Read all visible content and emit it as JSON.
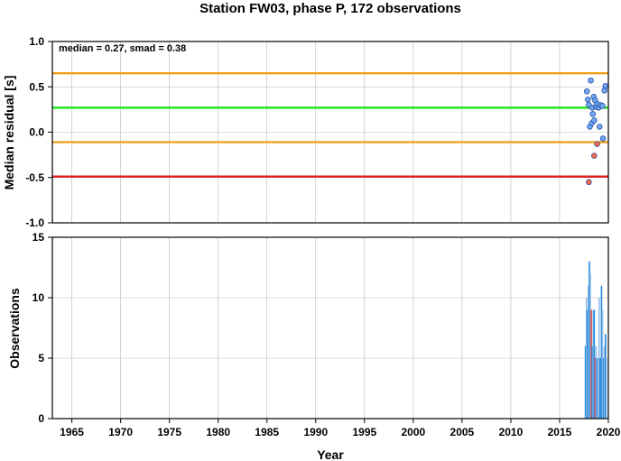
{
  "chart_data": [
    {
      "type": "scatter",
      "title": "Station FW03, phase P, 172 observations",
      "ylabel": "Median residual [s]",
      "annotation": "median = 0.27, smad = 0.38",
      "xlim": [
        1963,
        2020
      ],
      "ylim": [
        -1.0,
        1.0
      ],
      "yticks": [
        "-1.0",
        "-0.5",
        "0.0",
        "0.5",
        "1.0"
      ],
      "grid": true,
      "reference_lines": [
        {
          "value": 0.65,
          "color": "#f0a01c"
        },
        {
          "value": 0.27,
          "color": "#22e622"
        },
        {
          "value": -0.11,
          "color": "#f0a01c"
        },
        {
          "value": -0.49,
          "color": "#e02020"
        }
      ],
      "points": [
        {
          "x": 2017.8,
          "y": 0.45,
          "color": "#6fa8f5"
        },
        {
          "x": 2017.9,
          "y": 0.36,
          "color": "#6fa8f5"
        },
        {
          "x": 2018.0,
          "y": 0.3,
          "color": "#6fa8f5"
        },
        {
          "x": 2018.1,
          "y": 0.06,
          "color": "#6fa8f5"
        },
        {
          "x": 2018.2,
          "y": 0.57,
          "color": "#6fa8f5"
        },
        {
          "x": 2018.3,
          "y": 0.1,
          "color": "#6fa8f5"
        },
        {
          "x": 2018.35,
          "y": 0.27,
          "color": "#6fa8f5"
        },
        {
          "x": 2018.4,
          "y": 0.2,
          "color": "#6fa8f5"
        },
        {
          "x": 2018.5,
          "y": 0.39,
          "color": "#6fa8f5"
        },
        {
          "x": 2018.55,
          "y": 0.13,
          "color": "#6fa8f5"
        },
        {
          "x": 2018.65,
          "y": 0.35,
          "color": "#6fa8f5"
        },
        {
          "x": 2018.75,
          "y": 0.28,
          "color": "#6fa8f5"
        },
        {
          "x": 2018.85,
          "y": 0.31,
          "color": "#6fa8f5"
        },
        {
          "x": 2019.0,
          "y": 0.27,
          "color": "#6fa8f5"
        },
        {
          "x": 2019.1,
          "y": 0.06,
          "color": "#6fa8f5"
        },
        {
          "x": 2019.2,
          "y": 0.3,
          "color": "#6fa8f5"
        },
        {
          "x": 2019.4,
          "y": 0.29,
          "color": "#6fa8f5"
        },
        {
          "x": 2019.6,
          "y": 0.46,
          "color": "#6fa8f5"
        },
        {
          "x": 2019.7,
          "y": 0.51,
          "color": "#6fa8f5"
        },
        {
          "x": 2019.45,
          "y": -0.07,
          "color": "#6fa8f5"
        },
        {
          "x": 2018.0,
          "y": -0.55,
          "color": "#f56a50"
        },
        {
          "x": 2018.55,
          "y": -0.26,
          "color": "#f56a50"
        },
        {
          "x": 2018.85,
          "y": -0.13,
          "color": "#f56a50"
        }
      ]
    },
    {
      "type": "bar",
      "ylabel": "Observations",
      "xlabel": "Year",
      "xlim": [
        1963,
        2020
      ],
      "ylim": [
        0,
        15
      ],
      "xticks": [
        "1965",
        "1970",
        "1975",
        "1980",
        "1985",
        "1990",
        "1995",
        "2000",
        "2005",
        "2010",
        "2015",
        "2020"
      ],
      "yticks": [
        "0",
        "5",
        "10",
        "15"
      ],
      "grid": true,
      "bars": [
        {
          "x": 2017.65,
          "value": 6,
          "color": "#2288dd"
        },
        {
          "x": 2017.75,
          "value": 10,
          "color": "#8fbce8"
        },
        {
          "x": 2017.85,
          "value": 9,
          "color": "#2288dd"
        },
        {
          "x": 2017.95,
          "value": 11,
          "color": "#8fbce8"
        },
        {
          "x": 2018.05,
          "value": 13,
          "color": "#2288dd"
        },
        {
          "x": 2018.15,
          "value": 12,
          "color": "#8fbce8"
        },
        {
          "x": 2018.25,
          "value": 9,
          "color": "#e04646"
        },
        {
          "x": 2018.35,
          "value": 6,
          "color": "#2288dd"
        },
        {
          "x": 2018.45,
          "value": 9,
          "color": "#8fbce8"
        },
        {
          "x": 2018.55,
          "value": 9,
          "color": "#2288dd"
        },
        {
          "x": 2018.65,
          "value": 5,
          "color": "#e04646"
        },
        {
          "x": 2018.75,
          "value": 6,
          "color": "#8fbce8"
        },
        {
          "x": 2018.85,
          "value": 5,
          "color": "#2288dd"
        },
        {
          "x": 2018.95,
          "value": 5,
          "color": "#8fbce8"
        },
        {
          "x": 2019.05,
          "value": 10,
          "color": "#8fbce8"
        },
        {
          "x": 2019.15,
          "value": 5,
          "color": "#2288dd"
        },
        {
          "x": 2019.3,
          "value": 11,
          "color": "#2288dd"
        },
        {
          "x": 2019.4,
          "value": 9,
          "color": "#8fbce8"
        },
        {
          "x": 2019.5,
          "value": 5,
          "color": "#2288dd"
        },
        {
          "x": 2019.6,
          "value": 6,
          "color": "#8fbce8"
        },
        {
          "x": 2019.7,
          "value": 7,
          "color": "#2288dd"
        },
        {
          "x": 2019.8,
          "value": 5,
          "color": "#8fbce8"
        }
      ]
    }
  ]
}
